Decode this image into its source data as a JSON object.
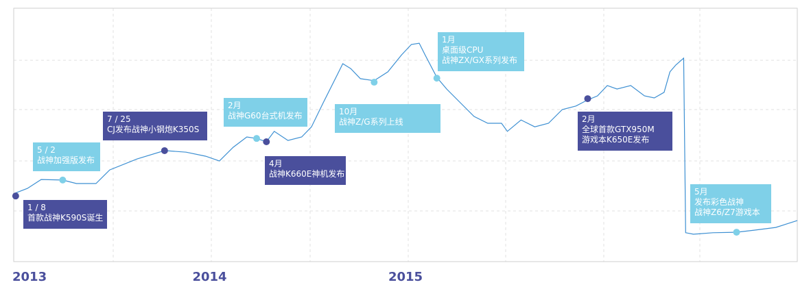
{
  "chart_data": {
    "type": "line",
    "x": [
      2013.0,
      2013.07,
      2013.14,
      2013.25,
      2013.32,
      2013.42,
      2013.49,
      2013.63,
      2013.77,
      2013.88,
      2013.98,
      2014.05,
      2014.12,
      2014.19,
      2014.24,
      2014.29,
      2014.33,
      2014.4,
      2014.47,
      2014.52,
      2014.58,
      2014.65,
      2014.68,
      2014.72,
      2014.77,
      2014.84,
      2014.91,
      2014.98,
      2015.03,
      2015.07,
      2015.1,
      2015.16,
      2015.21,
      2015.28,
      2015.35,
      2015.42,
      2015.49,
      2015.52,
      2015.59,
      2015.66,
      2015.73,
      2015.8,
      2015.87,
      2015.93,
      2015.98,
      2016.03,
      2016.08,
      2016.15,
      2016.22,
      2016.27,
      2016.32,
      2016.35,
      2016.38,
      2016.42,
      2016.43,
      2016.47,
      2016.57,
      2016.69,
      2016.78,
      2016.89,
      2017.0
    ],
    "values": [
      26.8,
      28.9,
      32.4,
      32.2,
      30.8,
      30.8,
      36.2,
      40.5,
      43.8,
      43.2,
      41.6,
      39.7,
      45.1,
      49.2,
      48.6,
      47.3,
      51.4,
      47.8,
      49.2,
      53.2,
      62.7,
      73.5,
      78.1,
      76.2,
      72.2,
      71.4,
      74.9,
      81.6,
      85.7,
      86.2,
      81.6,
      72.7,
      68.1,
      62.7,
      57.3,
      54.6,
      54.6,
      51.4,
      55.9,
      53.2,
      54.6,
      60.0,
      61.4,
      63.8,
      65.4,
      69.5,
      68.1,
      69.5,
      65.4,
      64.6,
      66.8,
      74.9,
      77.6,
      80.3,
      11.4,
      10.8,
      11.4,
      11.6,
      12.4,
      13.5,
      16.2
    ],
    "color": "#3c8fd2",
    "xlim": [
      2013,
      2017
    ],
    "ylim": [
      0,
      100
    ],
    "xticks": [
      2013,
      2014,
      2015
    ],
    "events": [
      {
        "x": 2013.01,
        "value": 25.9,
        "color": "#4a4f9c",
        "text": [
          "1 / 8",
          "首款战神K590S诞生"
        ]
      },
      {
        "x": 2013.25,
        "value": 32.2,
        "color": "#7fd0e8",
        "text": [
          "5 / 2",
          "战神加强版发布"
        ]
      },
      {
        "x": 2013.77,
        "value": 43.8,
        "color": "#4a4f9c",
        "text": [
          "7 / 25",
          "CJ发布战神小钢炮K350S"
        ]
      },
      {
        "x": 2014.24,
        "value": 48.6,
        "color": "#7fd0e8",
        "text": [
          "2月",
          "战神G60台式机发布"
        ]
      },
      {
        "x": 2014.29,
        "value": 47.3,
        "color": "#4a4f9c",
        "text": [
          "4月",
          "战神K660E神机发布"
        ]
      },
      {
        "x": 2014.84,
        "value": 70.8,
        "color": "#7fd0e8",
        "text": [
          "10月",
          "战神Z/G系列上线"
        ]
      },
      {
        "x": 2015.16,
        "value": 72.4,
        "color": "#7fd0e8",
        "text": [
          "1月",
          "桌面级CPU",
          "战神ZX/GX系列发布"
        ]
      },
      {
        "x": 2015.93,
        "value": 64.3,
        "color": "#4a4f9c",
        "text": [
          "2月",
          "全球首款GTX950M",
          "游戏本K650E发布"
        ]
      },
      {
        "x": 2016.69,
        "value": 11.6,
        "color": "#7fd0e8",
        "text": [
          "5月",
          "发布彩色战神",
          "战神Z6/Z7游戏本"
        ]
      }
    ]
  }
}
